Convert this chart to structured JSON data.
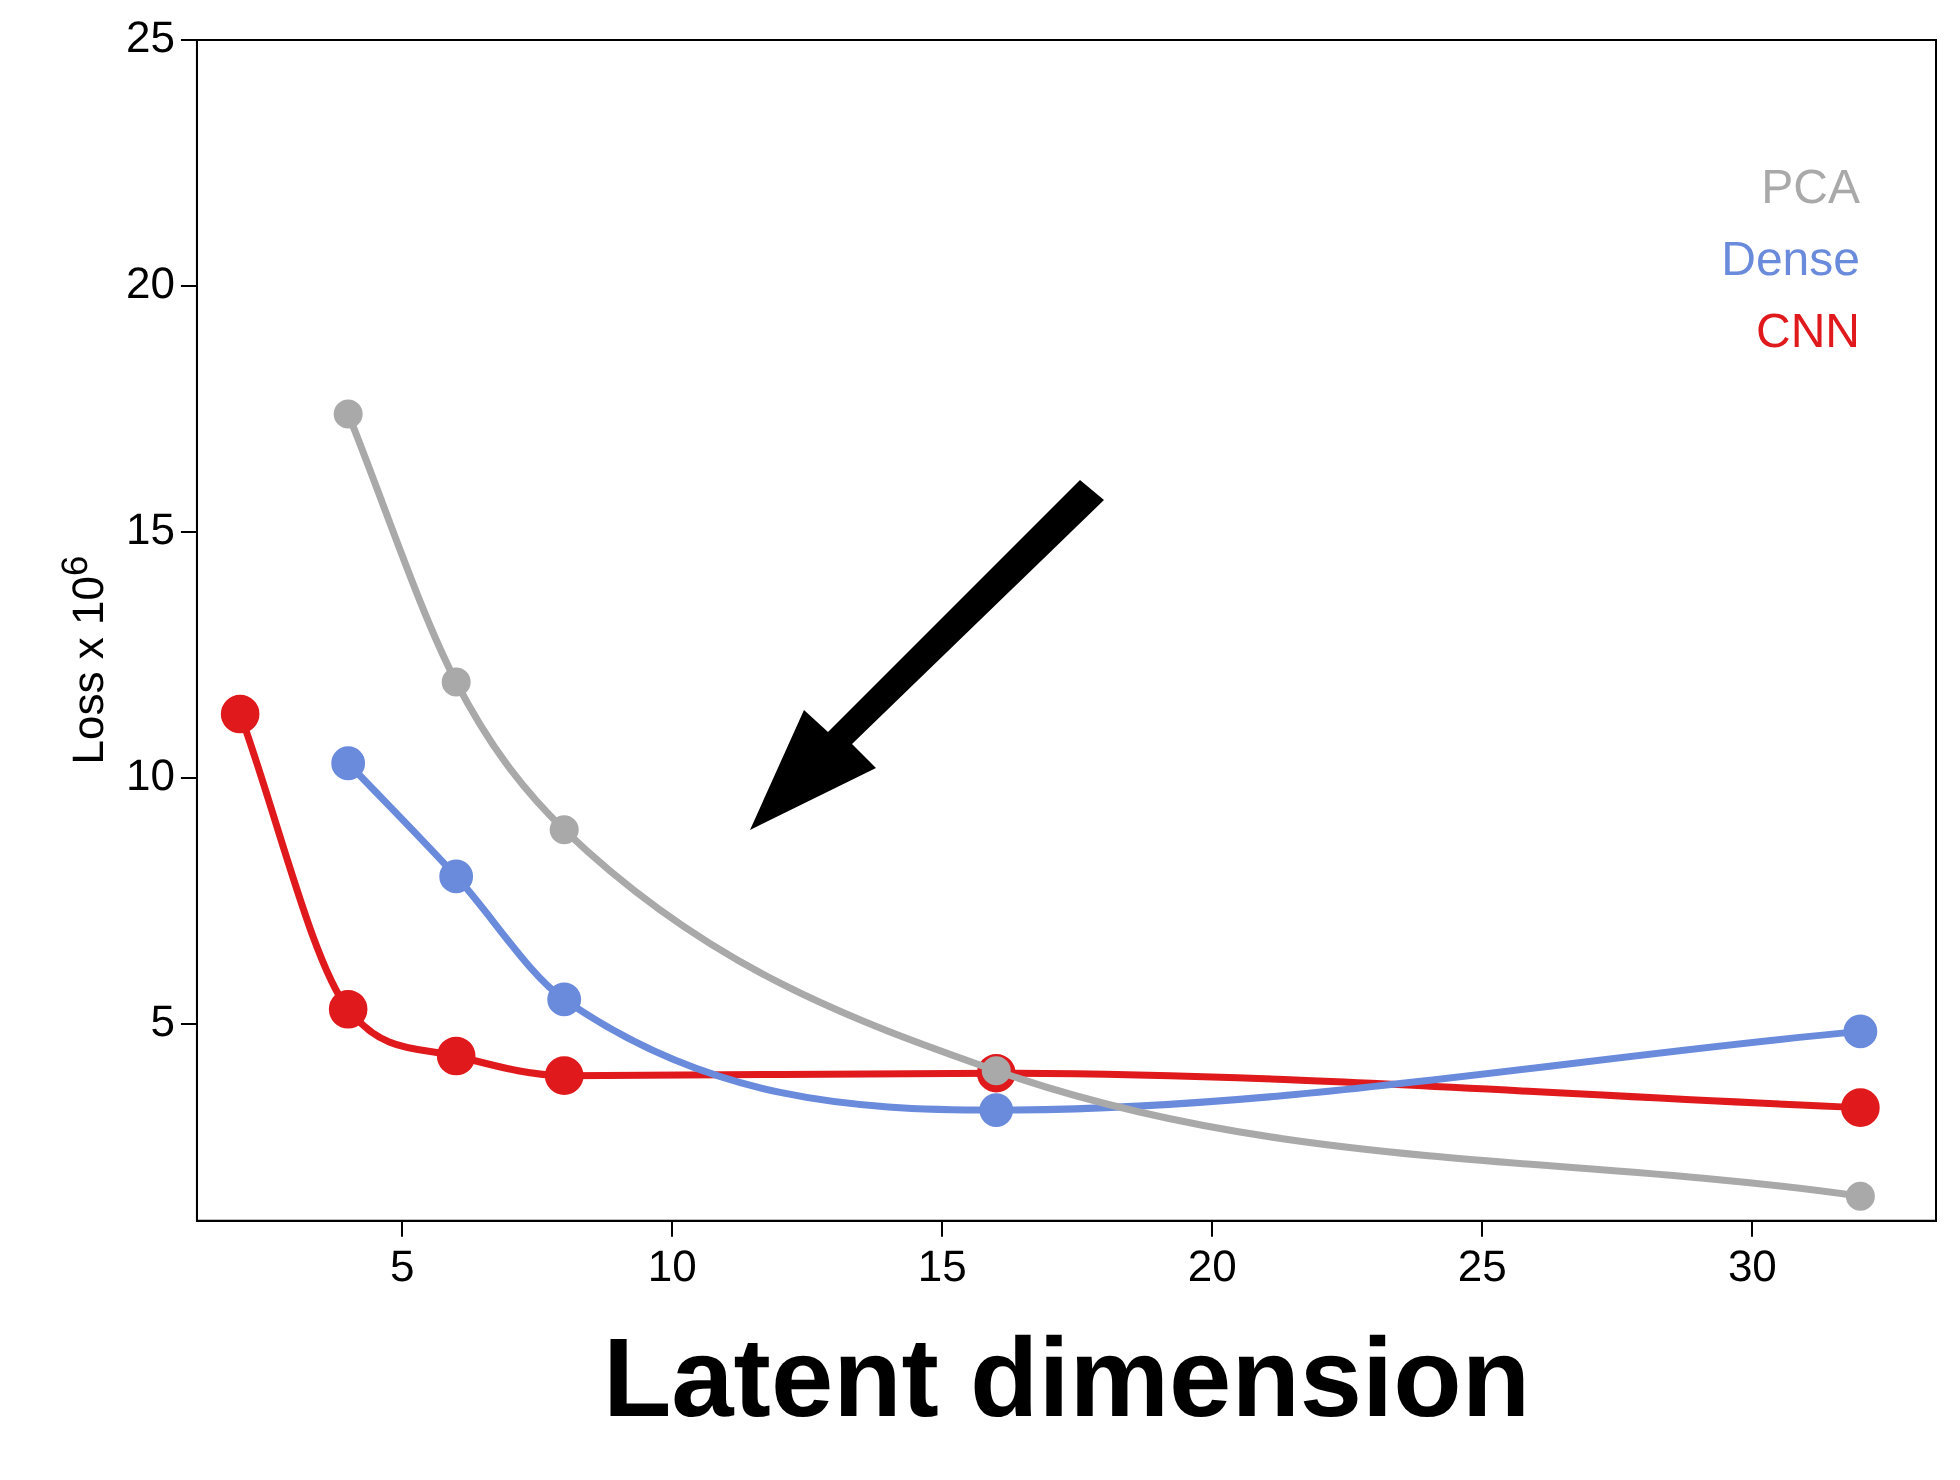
{
  "chart_data": {
    "type": "line",
    "xlabel": "Latent dimension",
    "ylabel": "Loss x 10$^{6}$",
    "xlim": [
      1.2,
      33.4
    ],
    "xticks": [
      5,
      10,
      15,
      20,
      25,
      30
    ],
    "ylim": [
      1,
      25
    ],
    "yticks": [
      5,
      10,
      15,
      20,
      25
    ],
    "grid": false,
    "legend": "top right",
    "marker": "circle",
    "line_style": "solid",
    "series": [
      {
        "name": "PCA",
        "color": "#a9a9a9",
        "x": [
          4,
          6,
          8,
          16,
          32
        ],
        "values": [
          17.4,
          11.95,
          8.95,
          4.05,
          1.5
        ]
      },
      {
        "name": "Dense",
        "color": "#6a8bdc",
        "x": [
          4,
          6,
          8,
          16,
          32
        ],
        "values": [
          10.3,
          8.0,
          5.5,
          3.25,
          4.85
        ]
      },
      {
        "name": "CNN",
        "color": "#e0191c",
        "x": [
          2,
          4,
          6,
          8,
          16,
          32
        ],
        "values": [
          11.3,
          5.3,
          4.35,
          3.95,
          4.0,
          3.3
        ]
      }
    ]
  }
}
